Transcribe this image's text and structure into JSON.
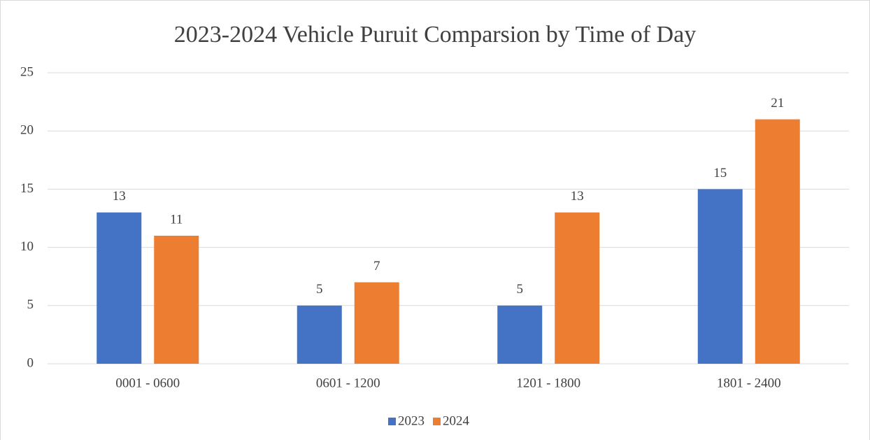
{
  "chart_data": {
    "type": "bar",
    "title": "2023-2024 Vehicle Puruit Comparsion by Time of Day",
    "categories": [
      "0001 - 0600",
      "0601 - 1200",
      "1201 - 1800",
      "1801 - 2400"
    ],
    "series": [
      {
        "name": "2023",
        "color": "#4472c4",
        "values": [
          13,
          5,
          5,
          15
        ]
      },
      {
        "name": "2024",
        "color": "#ed7d31",
        "values": [
          11,
          7,
          13,
          21
        ]
      }
    ],
    "ylim": [
      0,
      25
    ],
    "yticks": [
      0,
      5,
      10,
      15,
      20,
      25
    ],
    "grid": true,
    "legend": "bottom"
  }
}
